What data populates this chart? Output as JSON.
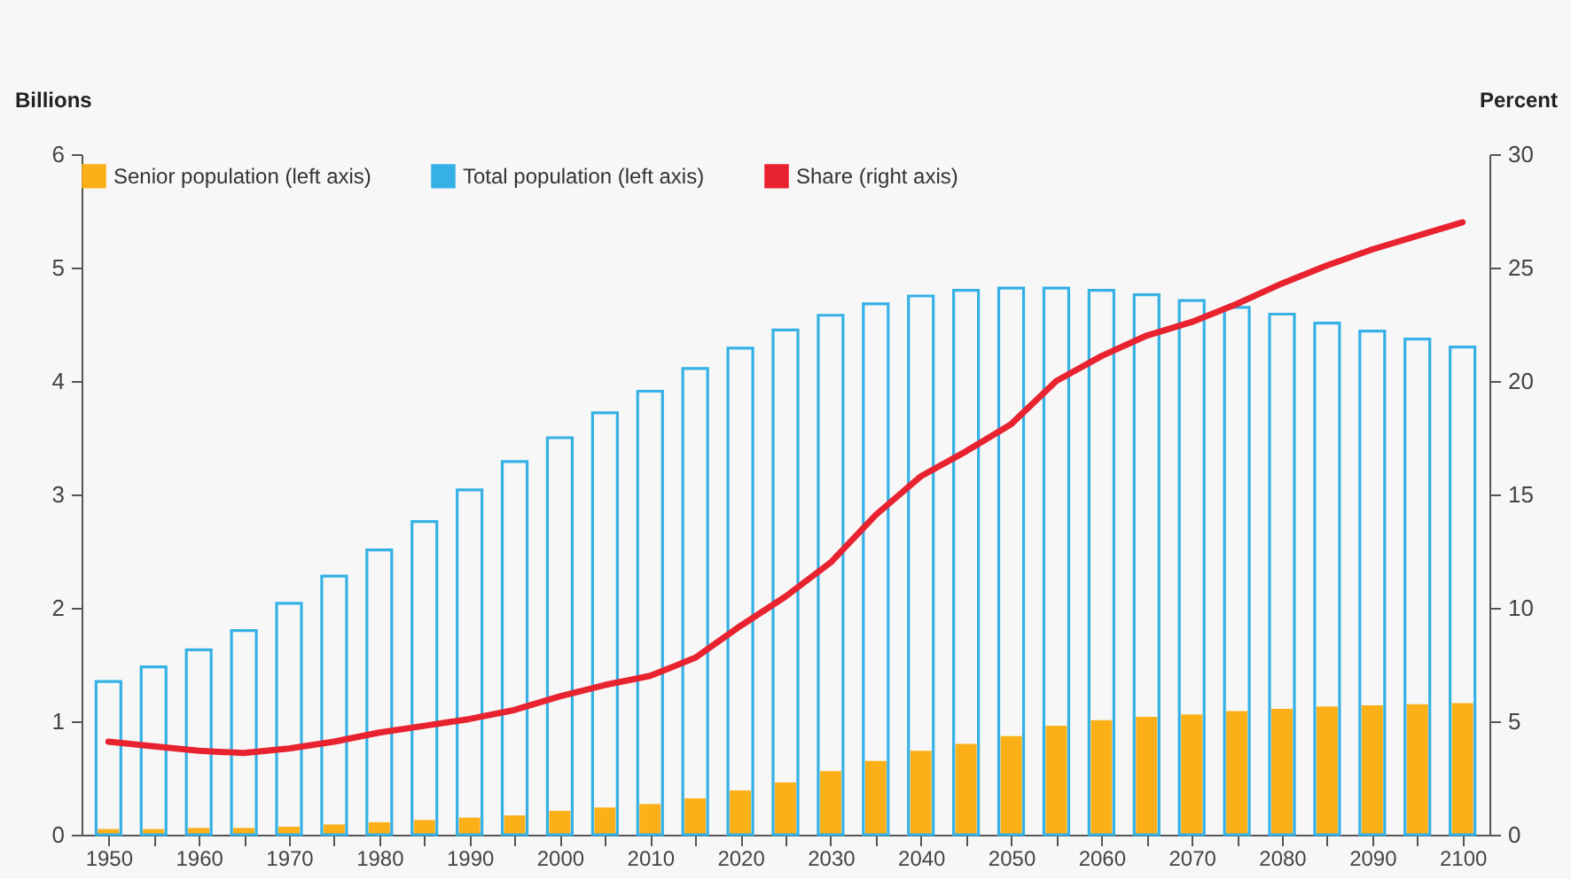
{
  "chart_data": {
    "type": "bar",
    "ylabel": "Billions",
    "y2label": "Percent",
    "x": [
      1950,
      1955,
      1960,
      1965,
      1970,
      1975,
      1980,
      1985,
      1990,
      1995,
      2000,
      2005,
      2010,
      2015,
      2020,
      2025,
      2030,
      2035,
      2040,
      2045,
      2050,
      2055,
      2060,
      2065,
      2070,
      2075,
      2080,
      2085,
      2090,
      2095,
      2100
    ],
    "xlim": [
      1948,
      2102
    ],
    "xticks": [
      1950,
      {
        "value": 1955,
        "label": null
      },
      1960,
      {
        "value": 1965,
        "label": null
      },
      1970,
      {
        "value": 1975,
        "label": null
      },
      1980,
      {
        "value": 1985,
        "label": null
      },
      1990,
      {
        "value": 1995,
        "label": null
      },
      2000,
      {
        "value": 2005,
        "label": null
      },
      2010,
      {
        "value": 2015,
        "label": null
      },
      2020,
      {
        "value": 2025,
        "label": null
      },
      2030,
      {
        "value": 2035,
        "label": null
      },
      2040,
      {
        "value": 2045,
        "label": null
      },
      2050,
      {
        "value": 2055,
        "label": null
      },
      2060,
      {
        "value": 2065,
        "label": null
      },
      2070,
      {
        "value": 2075,
        "label": null
      },
      2080,
      {
        "value": 2085,
        "label": null
      },
      2090,
      {
        "value": 2095,
        "label": null
      },
      2100
    ],
    "ylim": [
      0,
      6
    ],
    "yticks": [
      0,
      1,
      2,
      3,
      4,
      5,
      6
    ],
    "y2lim": [
      0,
      30
    ],
    "y2ticks": [
      0,
      5,
      10,
      15,
      20,
      25,
      30
    ],
    "legend": "top",
    "grid": false,
    "series": [
      {
        "name": "Senior population (left axis)",
        "color": "#fbb017",
        "values": [
          0.05,
          0.05,
          0.06,
          0.06,
          0.07,
          0.09,
          0.11,
          0.13,
          0.15,
          0.17,
          0.21,
          0.24,
          0.27,
          0.32,
          0.39,
          0.46,
          0.56,
          0.65,
          0.74,
          0.8,
          0.87,
          0.96,
          1.01,
          1.04,
          1.06,
          1.09,
          1.11,
          1.13,
          1.14,
          1.15,
          1.16
        ]
      },
      {
        "name": "Total population (left axis)",
        "color": "#35b1e5",
        "values": [
          1.35,
          1.48,
          1.63,
          1.8,
          2.04,
          2.28,
          2.51,
          2.76,
          3.04,
          3.29,
          3.5,
          3.72,
          3.91,
          4.11,
          4.29,
          4.45,
          4.58,
          4.68,
          4.75,
          4.8,
          4.82,
          4.82,
          4.8,
          4.76,
          4.71,
          4.65,
          4.59,
          4.51,
          4.44,
          4.37,
          4.3
        ]
      },
      {
        "name": "Share (right axis)",
        "type": "line",
        "axis": "y2",
        "color": "#e8222e",
        "values": [
          4.1,
          3.9,
          3.7,
          3.6,
          3.8,
          4.1,
          4.5,
          4.8,
          5.1,
          5.5,
          6.1,
          6.6,
          7.0,
          7.8,
          9.2,
          10.5,
          12.0,
          14.1,
          15.8,
          16.9,
          18.1,
          20.0,
          21.1,
          22.0,
          22.6,
          23.4,
          24.3,
          25.1,
          25.8,
          26.4,
          27.0
        ]
      }
    ]
  }
}
